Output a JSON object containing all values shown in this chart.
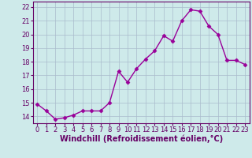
{
  "x": [
    0,
    1,
    2,
    3,
    4,
    5,
    6,
    7,
    8,
    9,
    10,
    11,
    12,
    13,
    14,
    15,
    16,
    17,
    18,
    19,
    20,
    21,
    22,
    23
  ],
  "y": [
    14.9,
    14.4,
    13.8,
    13.9,
    14.1,
    14.4,
    14.4,
    14.4,
    15.0,
    17.3,
    16.5,
    17.5,
    18.2,
    18.8,
    19.9,
    19.5,
    21.0,
    21.8,
    21.7,
    20.6,
    20.0,
    18.1,
    18.1,
    17.8
  ],
  "line_color": "#990099",
  "marker": "D",
  "markersize": 2.5,
  "linewidth": 1.0,
  "bg_color": "#ceeaea",
  "grid_color": "#aabbcc",
  "xlabel": "Windchill (Refroidissement éolien,°C)",
  "xlabel_fontsize": 7,
  "ytick_labels": [
    "14",
    "15",
    "16",
    "17",
    "18",
    "19",
    "20",
    "21",
    "22"
  ],
  "ytick_values": [
    14,
    15,
    16,
    17,
    18,
    19,
    20,
    21,
    22
  ],
  "xtick_labels": [
    "0",
    "1",
    "2",
    "3",
    "4",
    "5",
    "6",
    "7",
    "8",
    "9",
    "10",
    "11",
    "12",
    "13",
    "14",
    "15",
    "16",
    "17",
    "18",
    "19",
    "20",
    "21",
    "22",
    "23"
  ],
  "ylim": [
    13.5,
    22.4
  ],
  "xlim": [
    -0.5,
    23.5
  ],
  "tick_fontsize": 6,
  "tick_color": "#660066",
  "spine_color": "#660066",
  "xlabel_color": "#660066"
}
